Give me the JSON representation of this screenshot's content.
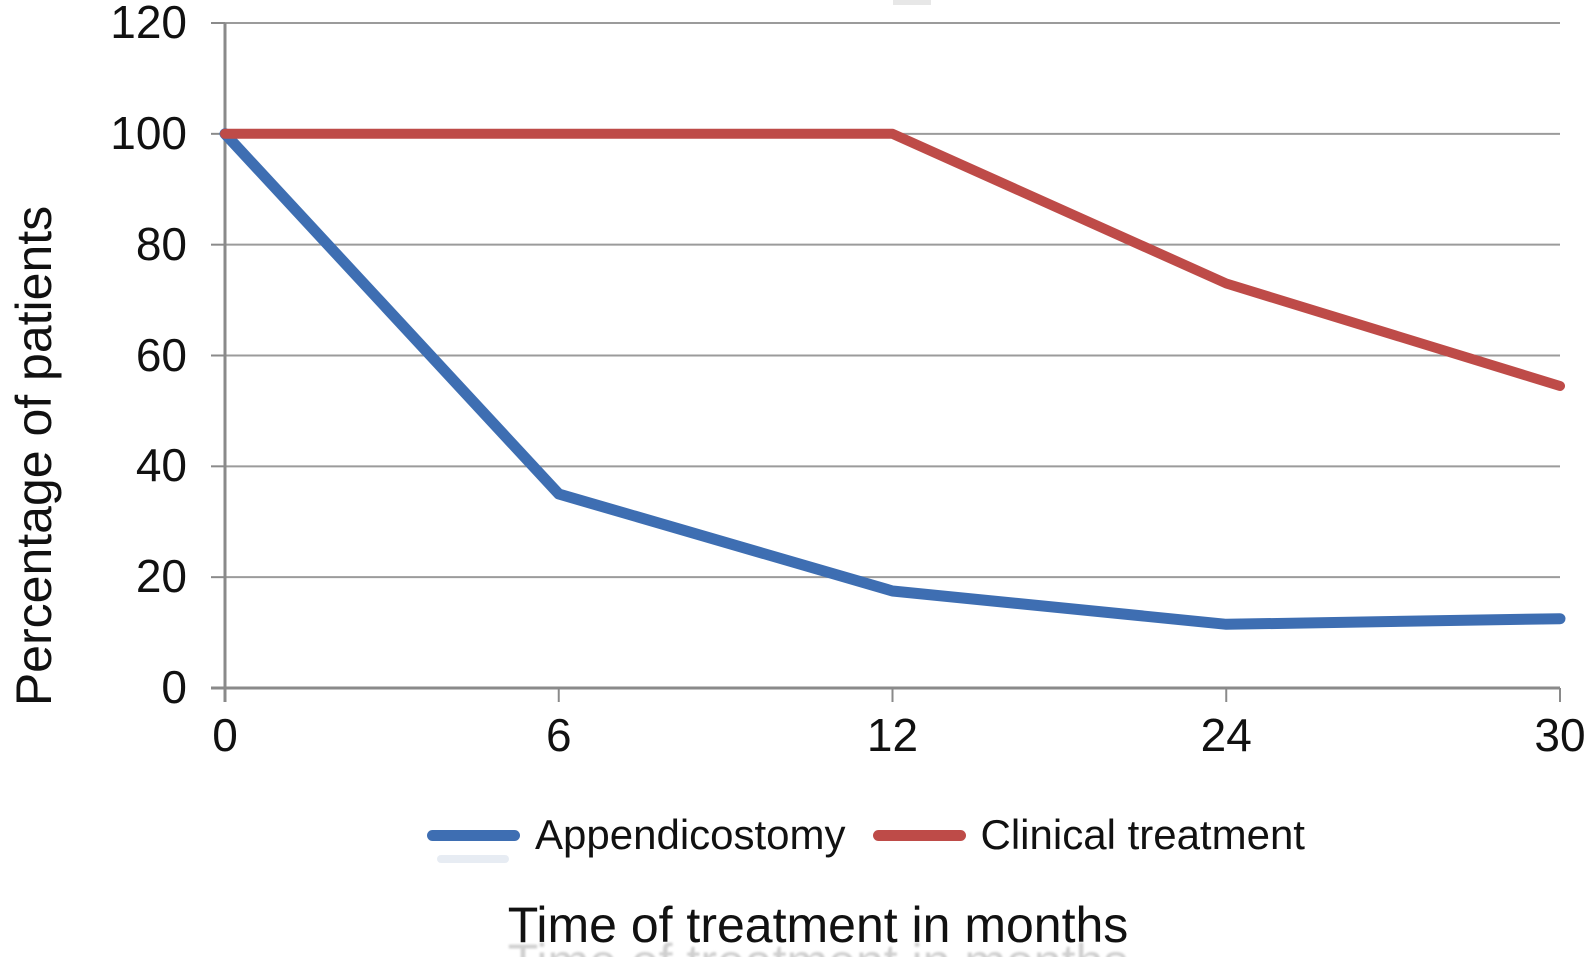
{
  "figure": {
    "background": "#ffffff",
    "text_color": "#111111",
    "grid_color": "#9b9b9b",
    "axis_color": "#8a8a8a"
  },
  "chart_data": {
    "type": "line",
    "title": "",
    "xlabel": "Time of treatment in months",
    "ylabel": "Percentage of patients",
    "categories": [
      "0",
      "6",
      "12",
      "24",
      "30"
    ],
    "series": [
      {
        "name": "Appendicostomy",
        "color": "#3E6EB2",
        "line_width": 11,
        "values": [
          100,
          35,
          17.5,
          11.5,
          12.5
        ]
      },
      {
        "name": "Clinical treatment",
        "color": "#BE4B48",
        "line_width": 10,
        "values": [
          100,
          100,
          100,
          73,
          54.5
        ]
      }
    ],
    "ylim": [
      0,
      120
    ],
    "ytick_step": 20,
    "yticks": [
      0,
      20,
      40,
      60,
      80,
      100,
      120
    ],
    "grid": "horizontal",
    "legend_position": "bottom",
    "x_axis_spacing": "categorical-equal"
  }
}
